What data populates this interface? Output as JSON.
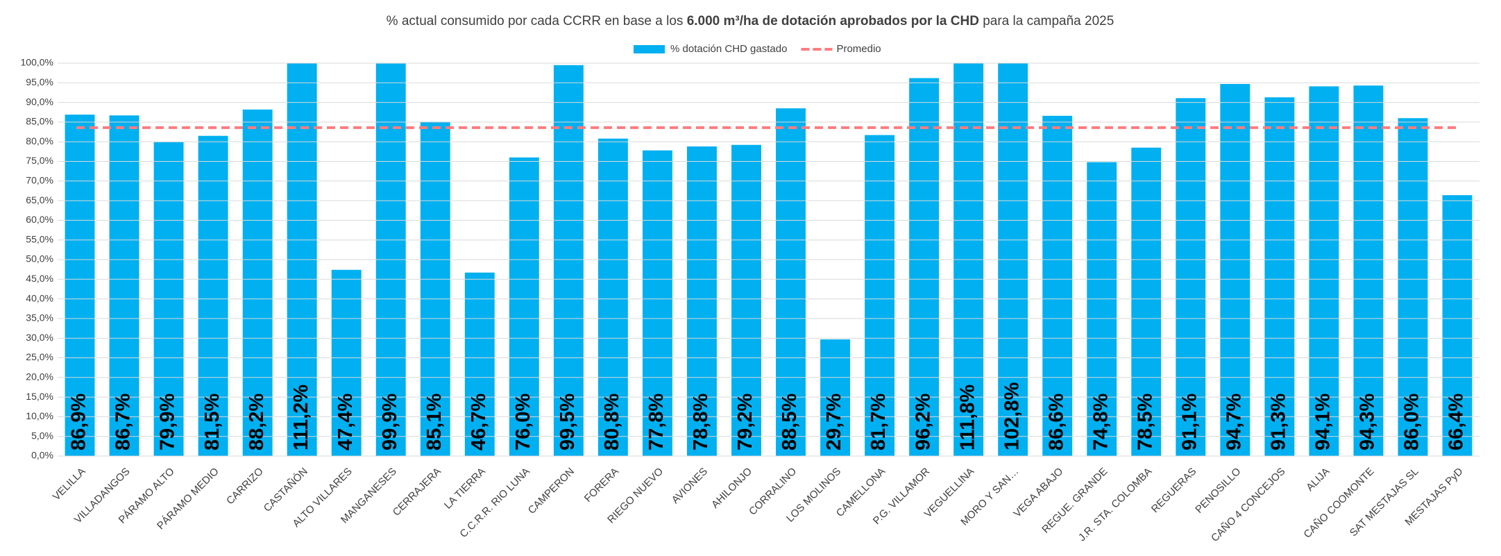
{
  "chart_data": {
    "type": "bar",
    "title": [
      "% actual consumido por cada CCRR en base a los ",
      "6.000 m³/ha de dotación aprobados por la CHD",
      " para la campaña 2025"
    ],
    "title_bold": [
      false,
      true,
      false
    ],
    "legend": "top",
    "categories": [
      "VELILLA",
      "VILLADANGOS",
      "PÁRAMO ALTO",
      "PÁRAMO MEDIO",
      "CARRIZO",
      "CASTAÑÓN",
      "ALTO VILLARES",
      "MANGANESES",
      "CERRAJERA",
      "LA TIERRA",
      "C.C.R.R. RIO LUNA",
      "CAMPERON",
      "FORERA",
      "RIEGO NUEVO",
      "AVIONES",
      "AHILONJO",
      "CORRALINO",
      "LOS MOLINOS",
      "CAMELLONA",
      "P.G. VILLAMOR",
      "VEGUELLINA",
      "MORO Y SAN…",
      "VEGA ABAJO",
      "REGUE. GRANDE",
      "J.R. STA. COLOMBA",
      "REGUERAS",
      "PENOSILLO",
      "CAÑO 4 CONCEJOS",
      "ALIJA",
      "CAÑO COOMONTE",
      "SAT MESTAJAS SL",
      "MESTAJAS PyD"
    ],
    "series": [
      {
        "name": "% dotación CHD gastado",
        "color": "#00b0f0",
        "values": [
          86.9,
          86.7,
          79.9,
          81.5,
          88.2,
          111.2,
          47.4,
          99.9,
          85.1,
          46.7,
          76.0,
          99.5,
          80.8,
          77.8,
          78.8,
          79.2,
          88.5,
          29.7,
          81.7,
          96.2,
          111.8,
          102.8,
          86.6,
          74.8,
          78.5,
          91.1,
          94.7,
          91.3,
          94.1,
          94.3,
          86.0,
          66.4
        ],
        "value_labels": [
          "86,9%",
          "86,7%",
          "79,9%",
          "81,5%",
          "88,2%",
          "111,2%",
          "47,4%",
          "99,9%",
          "85,1%",
          "46,7%",
          "76,0%",
          "99,5%",
          "80,8%",
          "77,8%",
          "78,8%",
          "79,2%",
          "88,5%",
          "29,7%",
          "81,7%",
          "96,2%",
          "111,8%",
          "102,8%",
          "86,6%",
          "74,8%",
          "78,5%",
          "91,1%",
          "94,7%",
          "91,3%",
          "94,1%",
          "94,3%",
          "86,0%",
          "66,4%"
        ]
      }
    ],
    "average": {
      "name": "Promedio",
      "value": 83.6,
      "color": "#ff7c80"
    },
    "ylim": [
      0,
      100
    ],
    "yticks": [
      {
        "value": 0,
        "label": "0,0%"
      },
      {
        "value": 5,
        "label": "5,0%"
      },
      {
        "value": 10,
        "label": "10,0%"
      },
      {
        "value": 15,
        "label": "15,0%"
      },
      {
        "value": 20,
        "label": "20,0%"
      },
      {
        "value": 25,
        "label": "25,0%"
      },
      {
        "value": 30,
        "label": "30,0%"
      },
      {
        "value": 35,
        "label": "35,0%"
      },
      {
        "value": 40,
        "label": "40,0%"
      },
      {
        "value": 45,
        "label": "45,0%"
      },
      {
        "value": 50,
        "label": "50,0%"
      },
      {
        "value": 55,
        "label": "55,0%"
      },
      {
        "value": 60,
        "label": "60,0%"
      },
      {
        "value": 65,
        "label": "65,0%"
      },
      {
        "value": 70,
        "label": "70,0%"
      },
      {
        "value": 75,
        "label": "75,0%"
      },
      {
        "value": 80,
        "label": "80,0%"
      },
      {
        "value": 85,
        "label": "85,0%"
      },
      {
        "value": 90,
        "label": "90,0%"
      },
      {
        "value": 95,
        "label": "95,0%"
      },
      {
        "value": 100,
        "label": "100,0%"
      }
    ],
    "grid": true
  }
}
